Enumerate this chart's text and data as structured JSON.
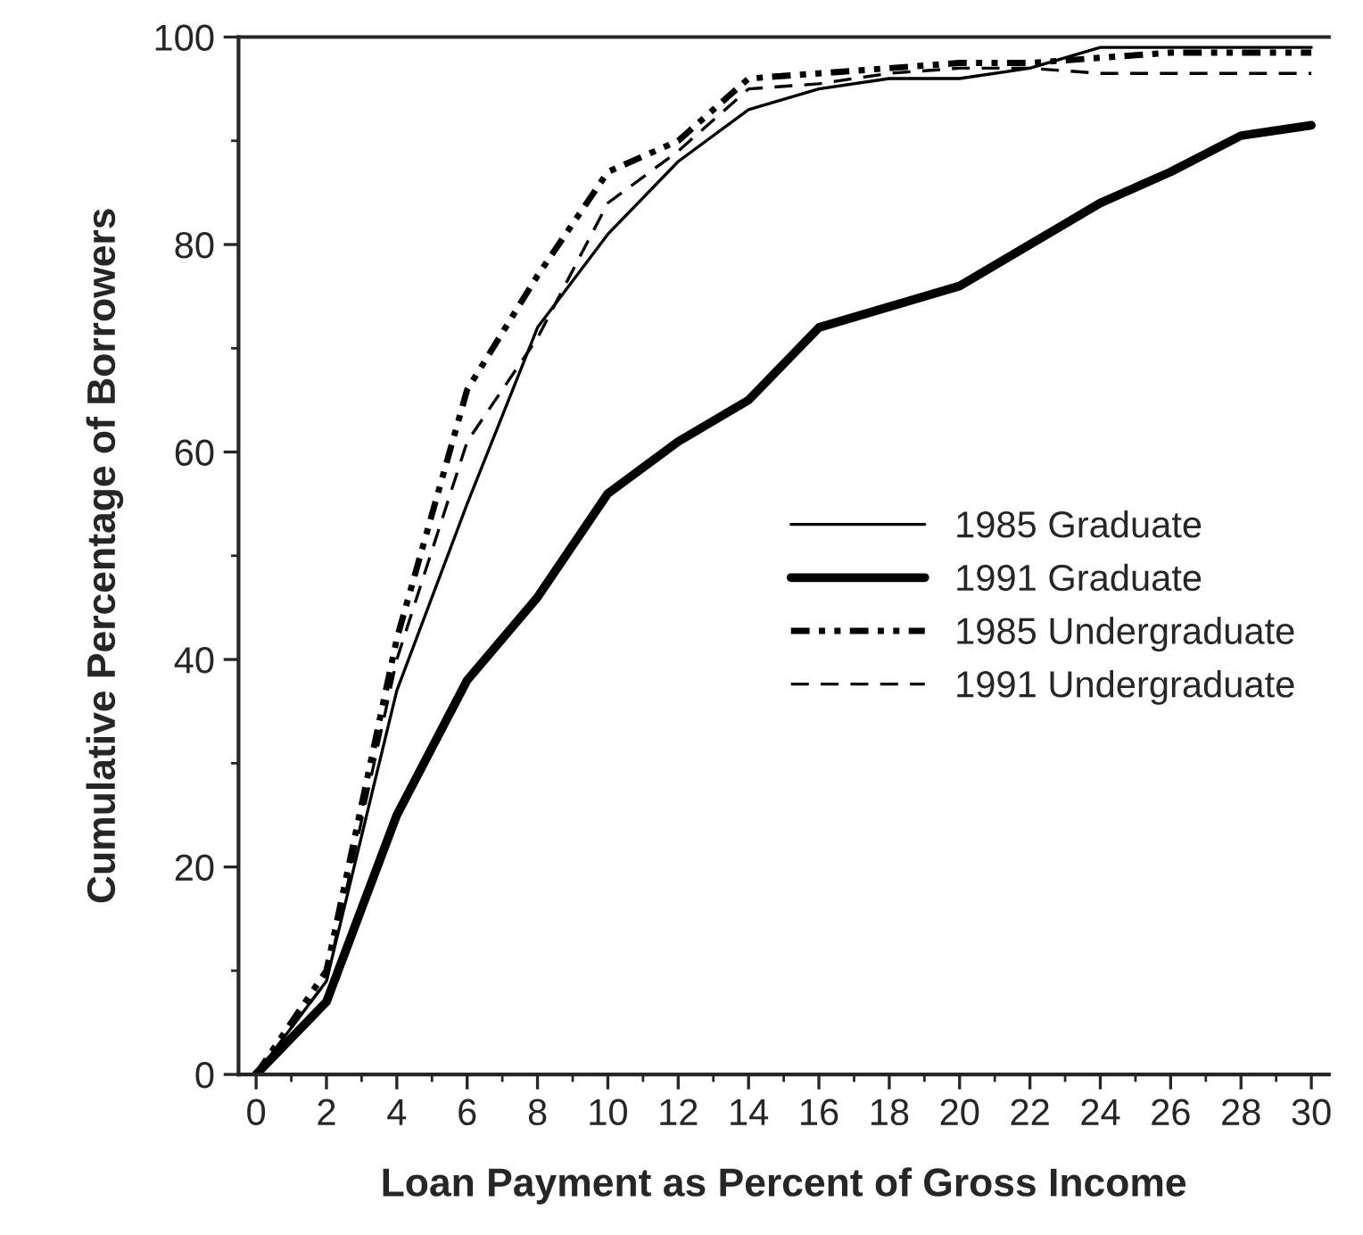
{
  "chart_data": {
    "type": "line",
    "xlabel": "Loan Payment as Percent of Gross Income",
    "ylabel": "Cumulative Percentage of Borrowers",
    "x": [
      0,
      2,
      4,
      6,
      8,
      10,
      12,
      14,
      16,
      18,
      20,
      22,
      24,
      26,
      28,
      30
    ],
    "series": [
      {
        "name": "1985 Graduate",
        "color": "#000000",
        "line_style": "solid",
        "values": [
          0,
          9,
          37,
          55,
          72,
          81,
          88,
          93,
          95,
          96,
          96,
          97,
          99,
          99,
          99,
          99
        ]
      },
      {
        "name": "1991 Graduate",
        "color": "#000000",
        "line_style": "solid",
        "values": [
          0,
          7,
          25,
          38,
          46,
          56,
          61,
          65,
          72,
          74,
          76,
          80,
          84,
          87,
          90.5,
          91.5
        ]
      },
      {
        "name": "1985 Undergraduate",
        "color": "#000000",
        "line_style": "dashdot",
        "values": [
          0,
          10,
          42,
          66,
          77,
          87,
          90,
          96,
          96.5,
          97,
          97.5,
          97.5,
          98,
          98.5,
          98.5,
          98.5
        ]
      },
      {
        "name": "1991 Undergraduate",
        "color": "#000000",
        "line_style": "dashed",
        "values": [
          0,
          9,
          40,
          61,
          71,
          84,
          89,
          95,
          95.5,
          96.5,
          97,
          97,
          96.5,
          96.5,
          96.5,
          96.5
        ]
      }
    ],
    "xlim": [
      -0.5,
      30.5
    ],
    "ylim": [
      0,
      100
    ],
    "xticks": [
      0,
      2,
      4,
      6,
      8,
      10,
      12,
      14,
      16,
      18,
      20,
      22,
      24,
      26,
      28,
      30
    ],
    "yticks": [
      0,
      20,
      40,
      60,
      80,
      100
    ],
    "grid": false,
    "legend": "right",
    "marker": "none"
  }
}
